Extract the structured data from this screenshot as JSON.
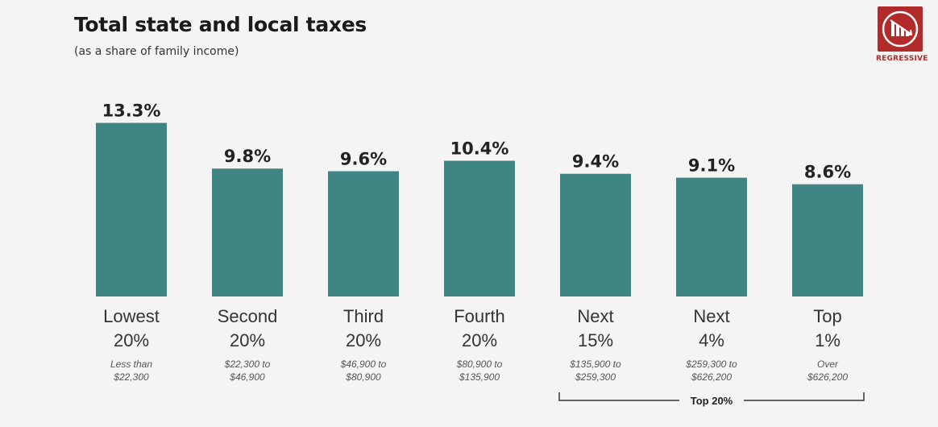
{
  "header": {
    "title": "Total state and local taxes",
    "subtitle": "(as a share of family income)"
  },
  "badge": {
    "label": "REGRESSIVE",
    "icon": "regressive-chart-icon",
    "color": "#b22a2a"
  },
  "colors": {
    "bar": "#3e8583"
  },
  "chart_data": {
    "type": "bar",
    "title": "Total state and local taxes",
    "subtitle": "(as a share of family income)",
    "xlabel": "",
    "ylabel": "",
    "ylim": [
      0,
      15
    ],
    "grid": false,
    "categories": [
      "Lowest 20%",
      "Second 20%",
      "Third 20%",
      "Fourth 20%",
      "Next 15%",
      "Next 4%",
      "Top 1%"
    ],
    "category_lines": [
      [
        "Lowest",
        "20%"
      ],
      [
        "Second",
        "20%"
      ],
      [
        "Third",
        "20%"
      ],
      [
        "Fourth",
        "20%"
      ],
      [
        "Next",
        "15%"
      ],
      [
        "Next",
        "4%"
      ],
      [
        "Top",
        "1%"
      ]
    ],
    "income_ranges": [
      [
        "Less than",
        "$22,300"
      ],
      [
        "$22,300 to",
        "$46,900"
      ],
      [
        "$46,900 to",
        "$80,900"
      ],
      [
        "$80,900 to",
        "$135,900"
      ],
      [
        "$135,900 to",
        "$259,300"
      ],
      [
        "$259,300 to",
        "$626,200"
      ],
      [
        "Over",
        "$626,200"
      ]
    ],
    "values": [
      13.3,
      9.8,
      9.6,
      10.4,
      9.4,
      9.1,
      8.6
    ],
    "value_labels": [
      "13.3%",
      "9.8%",
      "9.6%",
      "10.4%",
      "9.4%",
      "9.1%",
      "8.6%"
    ],
    "group_bracket": {
      "label": "Top 20%",
      "from_index": 4,
      "to_index": 6
    }
  }
}
